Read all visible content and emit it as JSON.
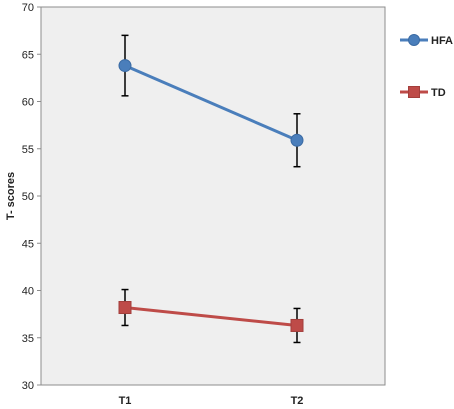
{
  "chart_data": {
    "type": "line",
    "title": "",
    "xlabel": "",
    "ylabel": "T- scores",
    "categories": [
      "T1",
      "T2"
    ],
    "ylim": [
      30,
      70
    ],
    "yticks": [
      30,
      35,
      40,
      45,
      50,
      55,
      60,
      65,
      70
    ],
    "grid": false,
    "legend_position": "right",
    "series": [
      {
        "name": "HFA",
        "values": [
          63.8,
          55.9
        ],
        "error_low": [
          60.6,
          53.1
        ],
        "error_high": [
          67.0,
          58.7
        ],
        "color": "#4A7EBB",
        "marker": "circle"
      },
      {
        "name": "TD",
        "values": [
          38.2,
          36.3
        ],
        "error_low": [
          36.3,
          34.5
        ],
        "error_high": [
          40.1,
          38.1
        ],
        "color": "#BE4B48",
        "marker": "square"
      }
    ],
    "colors": {
      "plot_background": "#EFEFEF",
      "error_bar": "#000000"
    }
  }
}
